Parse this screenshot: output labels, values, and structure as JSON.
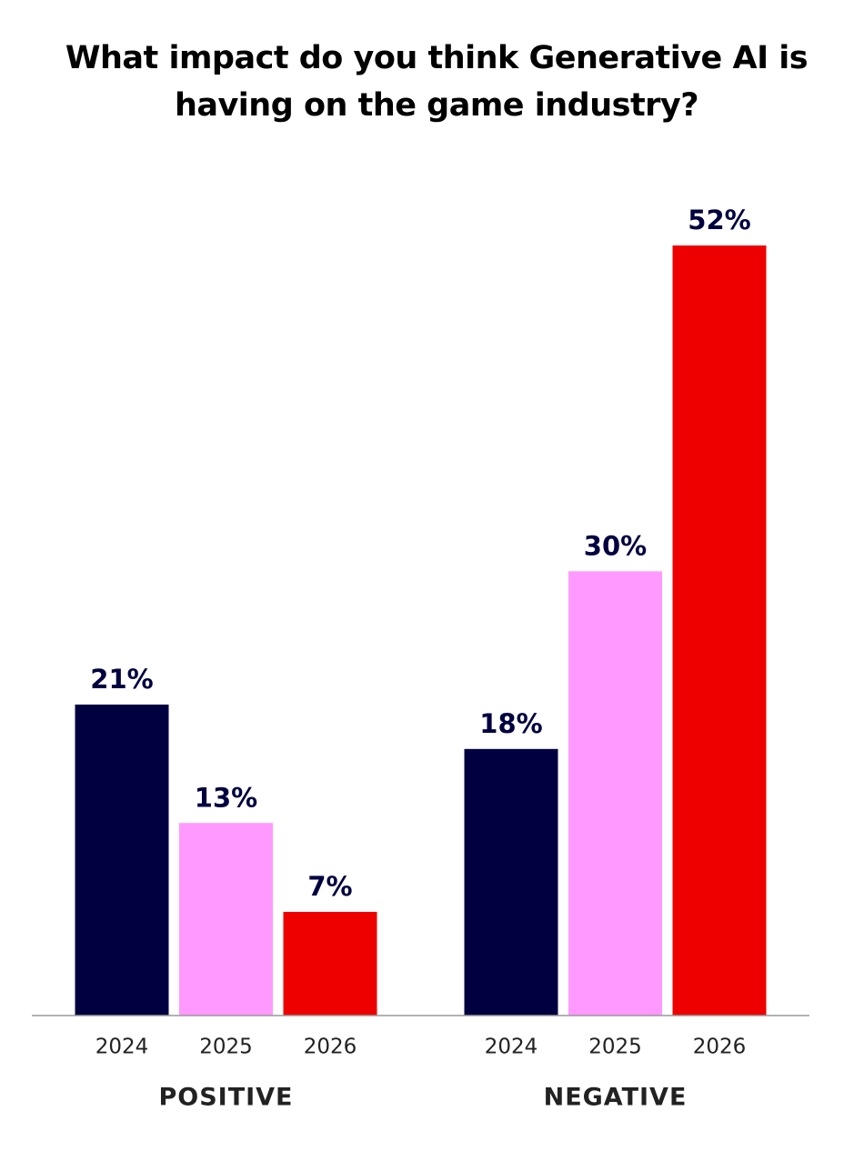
{
  "chart_data": {
    "type": "bar",
    "title": "What impact do you think Generative AI is having on the game industry?",
    "categories": [
      "POSITIVE",
      "NEGATIVE"
    ],
    "series": [
      {
        "name": "2024",
        "color": "#000040",
        "values": [
          21,
          18
        ],
        "value_labels": [
          "21%",
          "18%"
        ]
      },
      {
        "name": "2025",
        "color": "#ff99ff",
        "values": [
          13,
          30
        ],
        "value_labels": [
          "13%",
          "30%"
        ]
      },
      {
        "name": "2026",
        "color": "#ee0000",
        "values": [
          7,
          52
        ],
        "value_labels": [
          "7%",
          "52%"
        ]
      }
    ]
  }
}
